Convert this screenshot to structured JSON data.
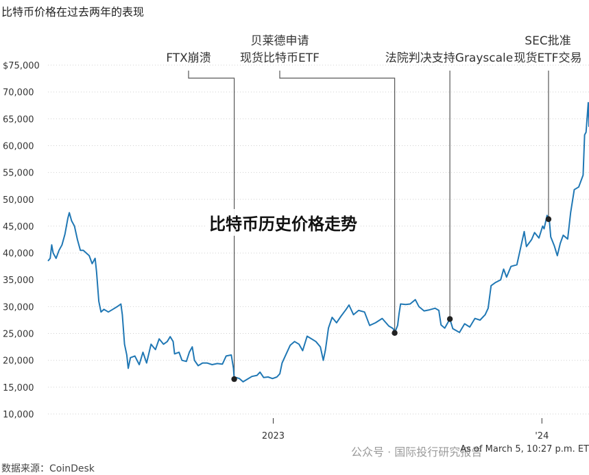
{
  "header": {
    "title": "比特币价格在过去两年的表现"
  },
  "overlay": {
    "title": "比特币历史价格走势"
  },
  "footer": {
    "source": "数据来源：CoinDesk",
    "as_of": "As of March 5, 10:27 p.m. ET",
    "watermark": "公众号 · 国际投行研究报告"
  },
  "colors": {
    "line": "#1f77b4",
    "annotation": "#555555",
    "marker": "#222222",
    "tick": "#333333"
  },
  "chart_data": {
    "type": "line",
    "title": "比特币价格在过去两年的表现",
    "ylim": [
      10000,
      75000
    ],
    "yticks": [
      10000,
      15000,
      20000,
      25000,
      30000,
      35000,
      40000,
      45000,
      50000,
      55000,
      60000,
      65000,
      70000,
      75000
    ],
    "ytick_labels": [
      "10,000",
      "15,000",
      "20,000",
      "25,000",
      "30,000",
      "35,000",
      "40,000",
      "45,000",
      "50,000",
      "55,000",
      "60,000",
      "65,000",
      "70,000",
      "$75,000"
    ],
    "xlim": [
      "2022-03-01",
      "2024-03-05"
    ],
    "xticks": [
      {
        "date": "2023-01-01",
        "label": "2023"
      },
      {
        "date": "2024-01-01",
        "label": "'24"
      }
    ],
    "series": [
      {
        "values": [
          [
            "2022-03-01",
            38500
          ],
          [
            "2022-03-04",
            39000
          ],
          [
            "2022-03-06",
            41500
          ],
          [
            "2022-03-08",
            40000
          ],
          [
            "2022-03-12",
            39000
          ],
          [
            "2022-03-16",
            40500
          ],
          [
            "2022-03-20",
            41500
          ],
          [
            "2022-03-24",
            43500
          ],
          [
            "2022-03-28",
            46500
          ],
          [
            "2022-03-30",
            47500
          ],
          [
            "2022-04-02",
            46000
          ],
          [
            "2022-04-06",
            45000
          ],
          [
            "2022-04-10",
            42500
          ],
          [
            "2022-04-14",
            40500
          ],
          [
            "2022-04-18",
            40500
          ],
          [
            "2022-04-22",
            40000
          ],
          [
            "2022-04-26",
            39500
          ],
          [
            "2022-04-30",
            38000
          ],
          [
            "2022-05-04",
            39000
          ],
          [
            "2022-05-06",
            36500
          ],
          [
            "2022-05-09",
            31000
          ],
          [
            "2022-05-12",
            29000
          ],
          [
            "2022-05-16",
            29500
          ],
          [
            "2022-05-22",
            29000
          ],
          [
            "2022-05-28",
            29500
          ],
          [
            "2022-06-03",
            30000
          ],
          [
            "2022-06-08",
            30500
          ],
          [
            "2022-06-10",
            28500
          ],
          [
            "2022-06-13",
            23000
          ],
          [
            "2022-06-16",
            21000
          ],
          [
            "2022-06-18",
            18500
          ],
          [
            "2022-06-21",
            20500
          ],
          [
            "2022-06-27",
            20800
          ],
          [
            "2022-07-03",
            19200
          ],
          [
            "2022-07-08",
            21500
          ],
          [
            "2022-07-13",
            19500
          ],
          [
            "2022-07-19",
            23000
          ],
          [
            "2022-07-25",
            22000
          ],
          [
            "2022-07-30",
            24000
          ],
          [
            "2022-08-05",
            23000
          ],
          [
            "2022-08-10",
            23500
          ],
          [
            "2022-08-14",
            24400
          ],
          [
            "2022-08-18",
            23500
          ],
          [
            "2022-08-20",
            21200
          ],
          [
            "2022-08-26",
            21500
          ],
          [
            "2022-08-30",
            20000
          ],
          [
            "2022-09-05",
            19800
          ],
          [
            "2022-09-09",
            21500
          ],
          [
            "2022-09-13",
            22500
          ],
          [
            "2022-09-16",
            20000
          ],
          [
            "2022-09-21",
            19000
          ],
          [
            "2022-09-27",
            19500
          ],
          [
            "2022-10-03",
            19500
          ],
          [
            "2022-10-10",
            19200
          ],
          [
            "2022-10-17",
            19400
          ],
          [
            "2022-10-24",
            19300
          ],
          [
            "2022-10-29",
            20800
          ],
          [
            "2022-11-05",
            21000
          ],
          [
            "2022-11-08",
            18500
          ],
          [
            "2022-11-09",
            16500
          ],
          [
            "2022-11-12",
            16800
          ],
          [
            "2022-11-16",
            16600
          ],
          [
            "2022-11-21",
            16000
          ],
          [
            "2022-11-27",
            16500
          ],
          [
            "2022-12-03",
            17000
          ],
          [
            "2022-12-10",
            17200
          ],
          [
            "2022-12-14",
            17800
          ],
          [
            "2022-12-19",
            16800
          ],
          [
            "2022-12-25",
            16900
          ],
          [
            "2022-12-31",
            16600
          ],
          [
            "2023-01-06",
            16900
          ],
          [
            "2023-01-10",
            17500
          ],
          [
            "2023-01-13",
            19500
          ],
          [
            "2023-01-18",
            21000
          ],
          [
            "2023-01-24",
            22800
          ],
          [
            "2023-01-30",
            23500
          ],
          [
            "2023-02-05",
            23000
          ],
          [
            "2023-02-10",
            21800
          ],
          [
            "2023-02-16",
            24500
          ],
          [
            "2023-02-22",
            24000
          ],
          [
            "2023-02-28",
            23500
          ],
          [
            "2023-03-06",
            22500
          ],
          [
            "2023-03-10",
            20000
          ],
          [
            "2023-03-13",
            22000
          ],
          [
            "2023-03-17",
            26000
          ],
          [
            "2023-03-22",
            28000
          ],
          [
            "2023-03-28",
            27000
          ],
          [
            "2023-04-03",
            28200
          ],
          [
            "2023-04-10",
            29500
          ],
          [
            "2023-04-14",
            30300
          ],
          [
            "2023-04-20",
            28500
          ],
          [
            "2023-04-27",
            29300
          ],
          [
            "2023-05-05",
            29000
          ],
          [
            "2023-05-12",
            26500
          ],
          [
            "2023-05-20",
            27000
          ],
          [
            "2023-05-29",
            27800
          ],
          [
            "2023-06-07",
            26400
          ],
          [
            "2023-06-13",
            25900
          ],
          [
            "2023-06-15",
            25100
          ],
          [
            "2023-06-19",
            26500
          ],
          [
            "2023-06-21",
            28700
          ],
          [
            "2023-06-23",
            30500
          ],
          [
            "2023-06-30",
            30400
          ],
          [
            "2023-07-06",
            30500
          ],
          [
            "2023-07-13",
            31300
          ],
          [
            "2023-07-18",
            30000
          ],
          [
            "2023-07-25",
            29200
          ],
          [
            "2023-08-01",
            29400
          ],
          [
            "2023-08-09",
            29700
          ],
          [
            "2023-08-14",
            29300
          ],
          [
            "2023-08-17",
            26600
          ],
          [
            "2023-08-22",
            26000
          ],
          [
            "2023-08-29",
            27700
          ],
          [
            "2023-09-02",
            25900
          ],
          [
            "2023-09-11",
            25200
          ],
          [
            "2023-09-18",
            26800
          ],
          [
            "2023-09-25",
            26200
          ],
          [
            "2023-10-02",
            27800
          ],
          [
            "2023-10-09",
            27500
          ],
          [
            "2023-10-16",
            28500
          ],
          [
            "2023-10-20",
            29700
          ],
          [
            "2023-10-24",
            33900
          ],
          [
            "2023-10-30",
            34500
          ],
          [
            "2023-11-06",
            35000
          ],
          [
            "2023-11-10",
            37000
          ],
          [
            "2023-11-14",
            35500
          ],
          [
            "2023-11-20",
            37500
          ],
          [
            "2023-11-28",
            37800
          ],
          [
            "2023-12-04",
            41500
          ],
          [
            "2023-12-08",
            44000
          ],
          [
            "2023-12-11",
            41200
          ],
          [
            "2023-12-18",
            42500
          ],
          [
            "2023-12-22",
            43800
          ],
          [
            "2023-12-28",
            42800
          ],
          [
            "2024-01-02",
            45000
          ],
          [
            "2024-01-04",
            44500
          ],
          [
            "2024-01-08",
            47000
          ],
          [
            "2024-01-11",
            46300
          ],
          [
            "2024-01-13",
            43000
          ],
          [
            "2024-01-18",
            41300
          ],
          [
            "2024-01-22",
            39500
          ],
          [
            "2024-01-26",
            41800
          ],
          [
            "2024-01-30",
            43300
          ],
          [
            "2024-02-05",
            42600
          ],
          [
            "2024-02-09",
            47500
          ],
          [
            "2024-02-14",
            51800
          ],
          [
            "2024-02-20",
            52300
          ],
          [
            "2024-02-26",
            54500
          ],
          [
            "2024-02-28",
            62000
          ],
          [
            "2024-03-01",
            62500
          ],
          [
            "2024-03-04",
            68000
          ],
          [
            "2024-03-05",
            63500
          ]
        ]
      }
    ],
    "annotations": [
      {
        "label_lines": [
          "FTX崩溃"
        ],
        "date": "2022-11-09",
        "value": 16500
      },
      {
        "label_lines": [
          "贝莱德申请",
          "现货比特币ETF"
        ],
        "date": "2023-06-15",
        "value": 25100
      },
      {
        "label_lines": [
          "法院判决支持Grayscale"
        ],
        "date": "2023-08-29",
        "value": 27700
      },
      {
        "label_lines": [
          "SEC批准",
          "现货ETF交易"
        ],
        "date": "2024-01-10",
        "value": 46300
      }
    ]
  }
}
